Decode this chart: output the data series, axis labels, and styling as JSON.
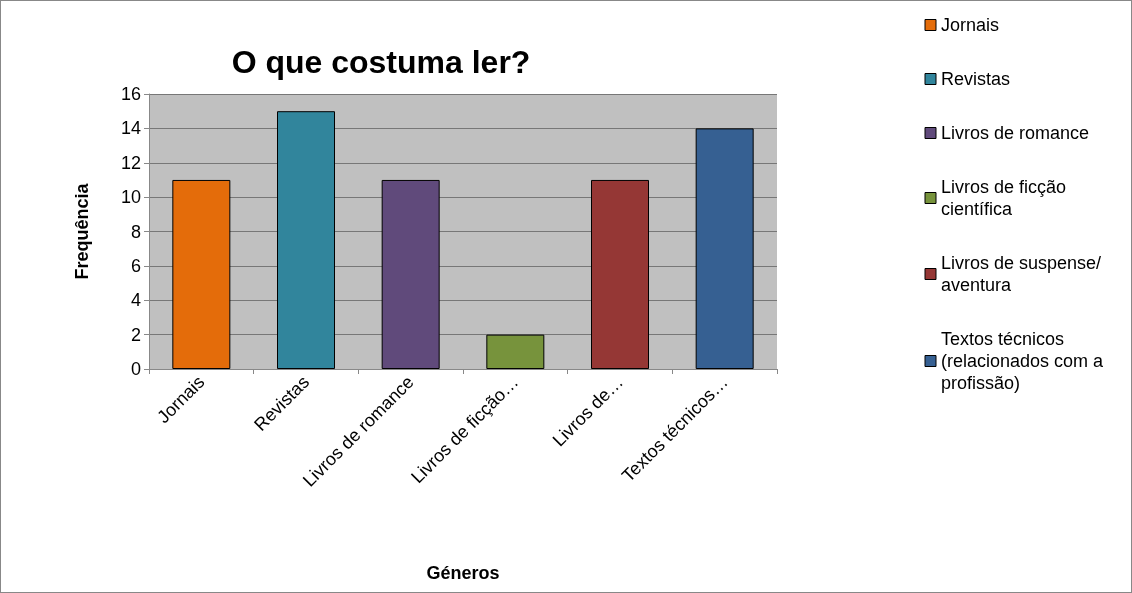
{
  "chart_data": {
    "type": "bar",
    "title": "O que costuma ler?",
    "xlabel": "Géneros",
    "ylabel": "Frequência",
    "categories": [
      "Jornais",
      "Revistas",
      "Livros de romance",
      "Livros de ficção…",
      "Livros de…",
      "Textos técnicos…"
    ],
    "series": [
      {
        "name": "Jornais",
        "color": "#e46c0a",
        "values": [
          11,
          null,
          null,
          null,
          null,
          null
        ]
      },
      {
        "name": "Revistas",
        "color": "#31859c",
        "values": [
          null,
          15,
          null,
          null,
          null,
          null
        ]
      },
      {
        "name": "Livros de romance",
        "color": "#604a7b",
        "values": [
          null,
          null,
          11,
          null,
          null,
          null
        ]
      },
      {
        "name": "Livros de ficção científica",
        "color": "#77933c",
        "values": [
          null,
          null,
          null,
          2,
          null,
          null
        ]
      },
      {
        "name": "Livros de suspense/aventura",
        "color": "#953735",
        "values": [
          null,
          null,
          null,
          null,
          11,
          null
        ]
      },
      {
        "name": "Textos técnicos (relacionados com a profissão)",
        "color": "#366092",
        "values": [
          null,
          null,
          null,
          null,
          null,
          14
        ]
      }
    ],
    "ylim": [
      0,
      16
    ],
    "yticks": [
      0,
      2,
      4,
      6,
      8,
      10,
      12,
      14,
      16
    ],
    "grid": "y",
    "legend": "right"
  }
}
